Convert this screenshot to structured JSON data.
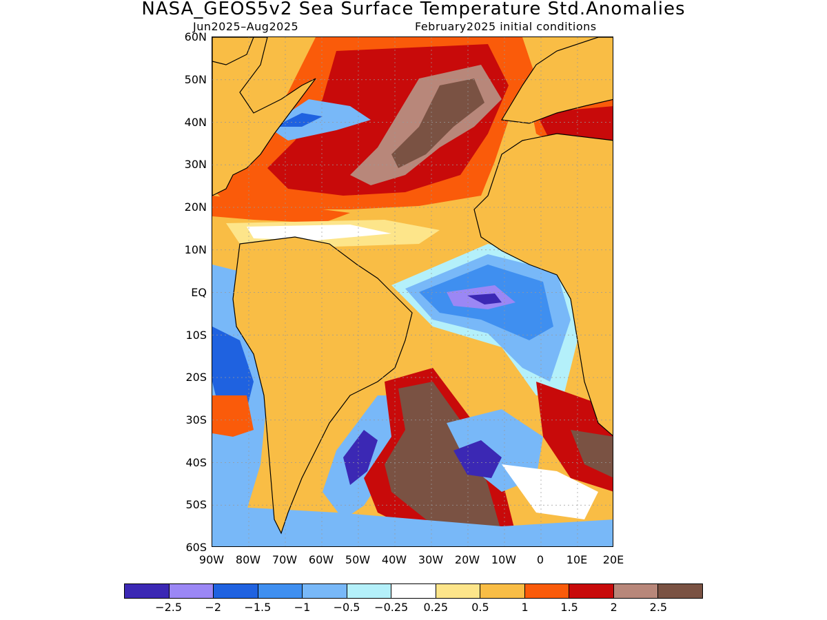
{
  "title": "NASA_GEOS5v2 Sea Surface Temperature Std.Anomalies",
  "subtitle_left": "Jun2025–Aug2025",
  "subtitle_right": "February2025 initial conditions",
  "map": {
    "lat_range": [
      -60,
      60
    ],
    "lon_range": [
      -90,
      20
    ],
    "land_color": "#f9bd45",
    "lat_labels": [
      "60N",
      "50N",
      "40N",
      "30N",
      "20N",
      "10N",
      "EQ",
      "10S",
      "20S",
      "30S",
      "40S",
      "50S",
      "60S"
    ],
    "lon_labels": [
      "90W",
      "80W",
      "70W",
      "60W",
      "50W",
      "40W",
      "30W",
      "20W",
      "10W",
      "0",
      "10E",
      "20E"
    ]
  },
  "colorbar": {
    "colors": [
      "#3b28b4",
      "#9b87f5",
      "#1f62e0",
      "#3f8ff0",
      "#78b8f8",
      "#b4f0fa",
      "#ffffff",
      "#fde58a",
      "#f9bd45",
      "#fa5b0a",
      "#c80a0a",
      "#b8877a",
      "#7a5243"
    ],
    "labels": [
      "−2.5",
      "−2",
      "−1.5",
      "−1",
      "−0.5",
      "−0.25",
      "0.25",
      "0.5",
      "1",
      "1.5",
      "2",
      "2.5"
    ]
  }
}
